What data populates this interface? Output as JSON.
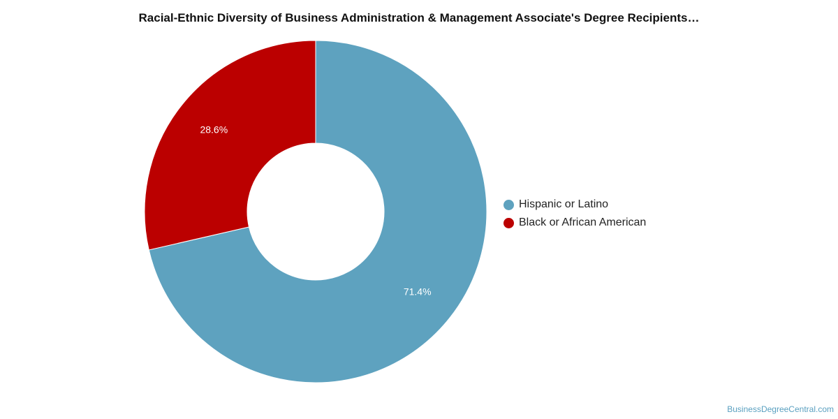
{
  "chart_data": {
    "type": "pie",
    "title": "Racial-Ethnic Diversity of Business Administration & Management Associate's Degree Recipients…",
    "donut": true,
    "legend_position": "right",
    "slices": [
      {
        "label": "Hispanic or Latino",
        "value": 71.4,
        "value_label": "71.4%",
        "color": "#5ea2bf"
      },
      {
        "label": "Black or African American",
        "value": 28.6,
        "value_label": "28.6%",
        "color": "#bb0000"
      }
    ]
  },
  "source": "BusinessDegreeCentral.com"
}
